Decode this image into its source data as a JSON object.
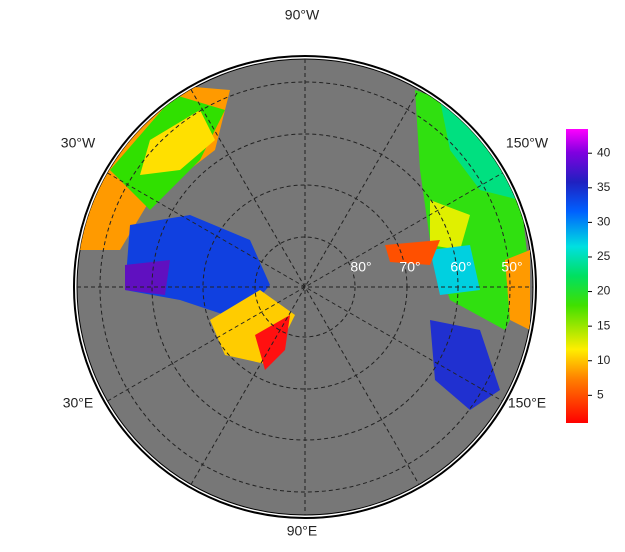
{
  "map": {
    "lon_labels": [
      "90°W",
      "30°W",
      "150°W",
      "30°E",
      "150°E",
      "90°E"
    ],
    "lat_labels": [
      "80°",
      "70°",
      "60°",
      "50°"
    ],
    "colorbar": {
      "lim": [
        1,
        43.5
      ],
      "ticks": [
        5,
        10,
        15,
        20,
        25,
        30,
        35,
        40
      ]
    }
  }
}
